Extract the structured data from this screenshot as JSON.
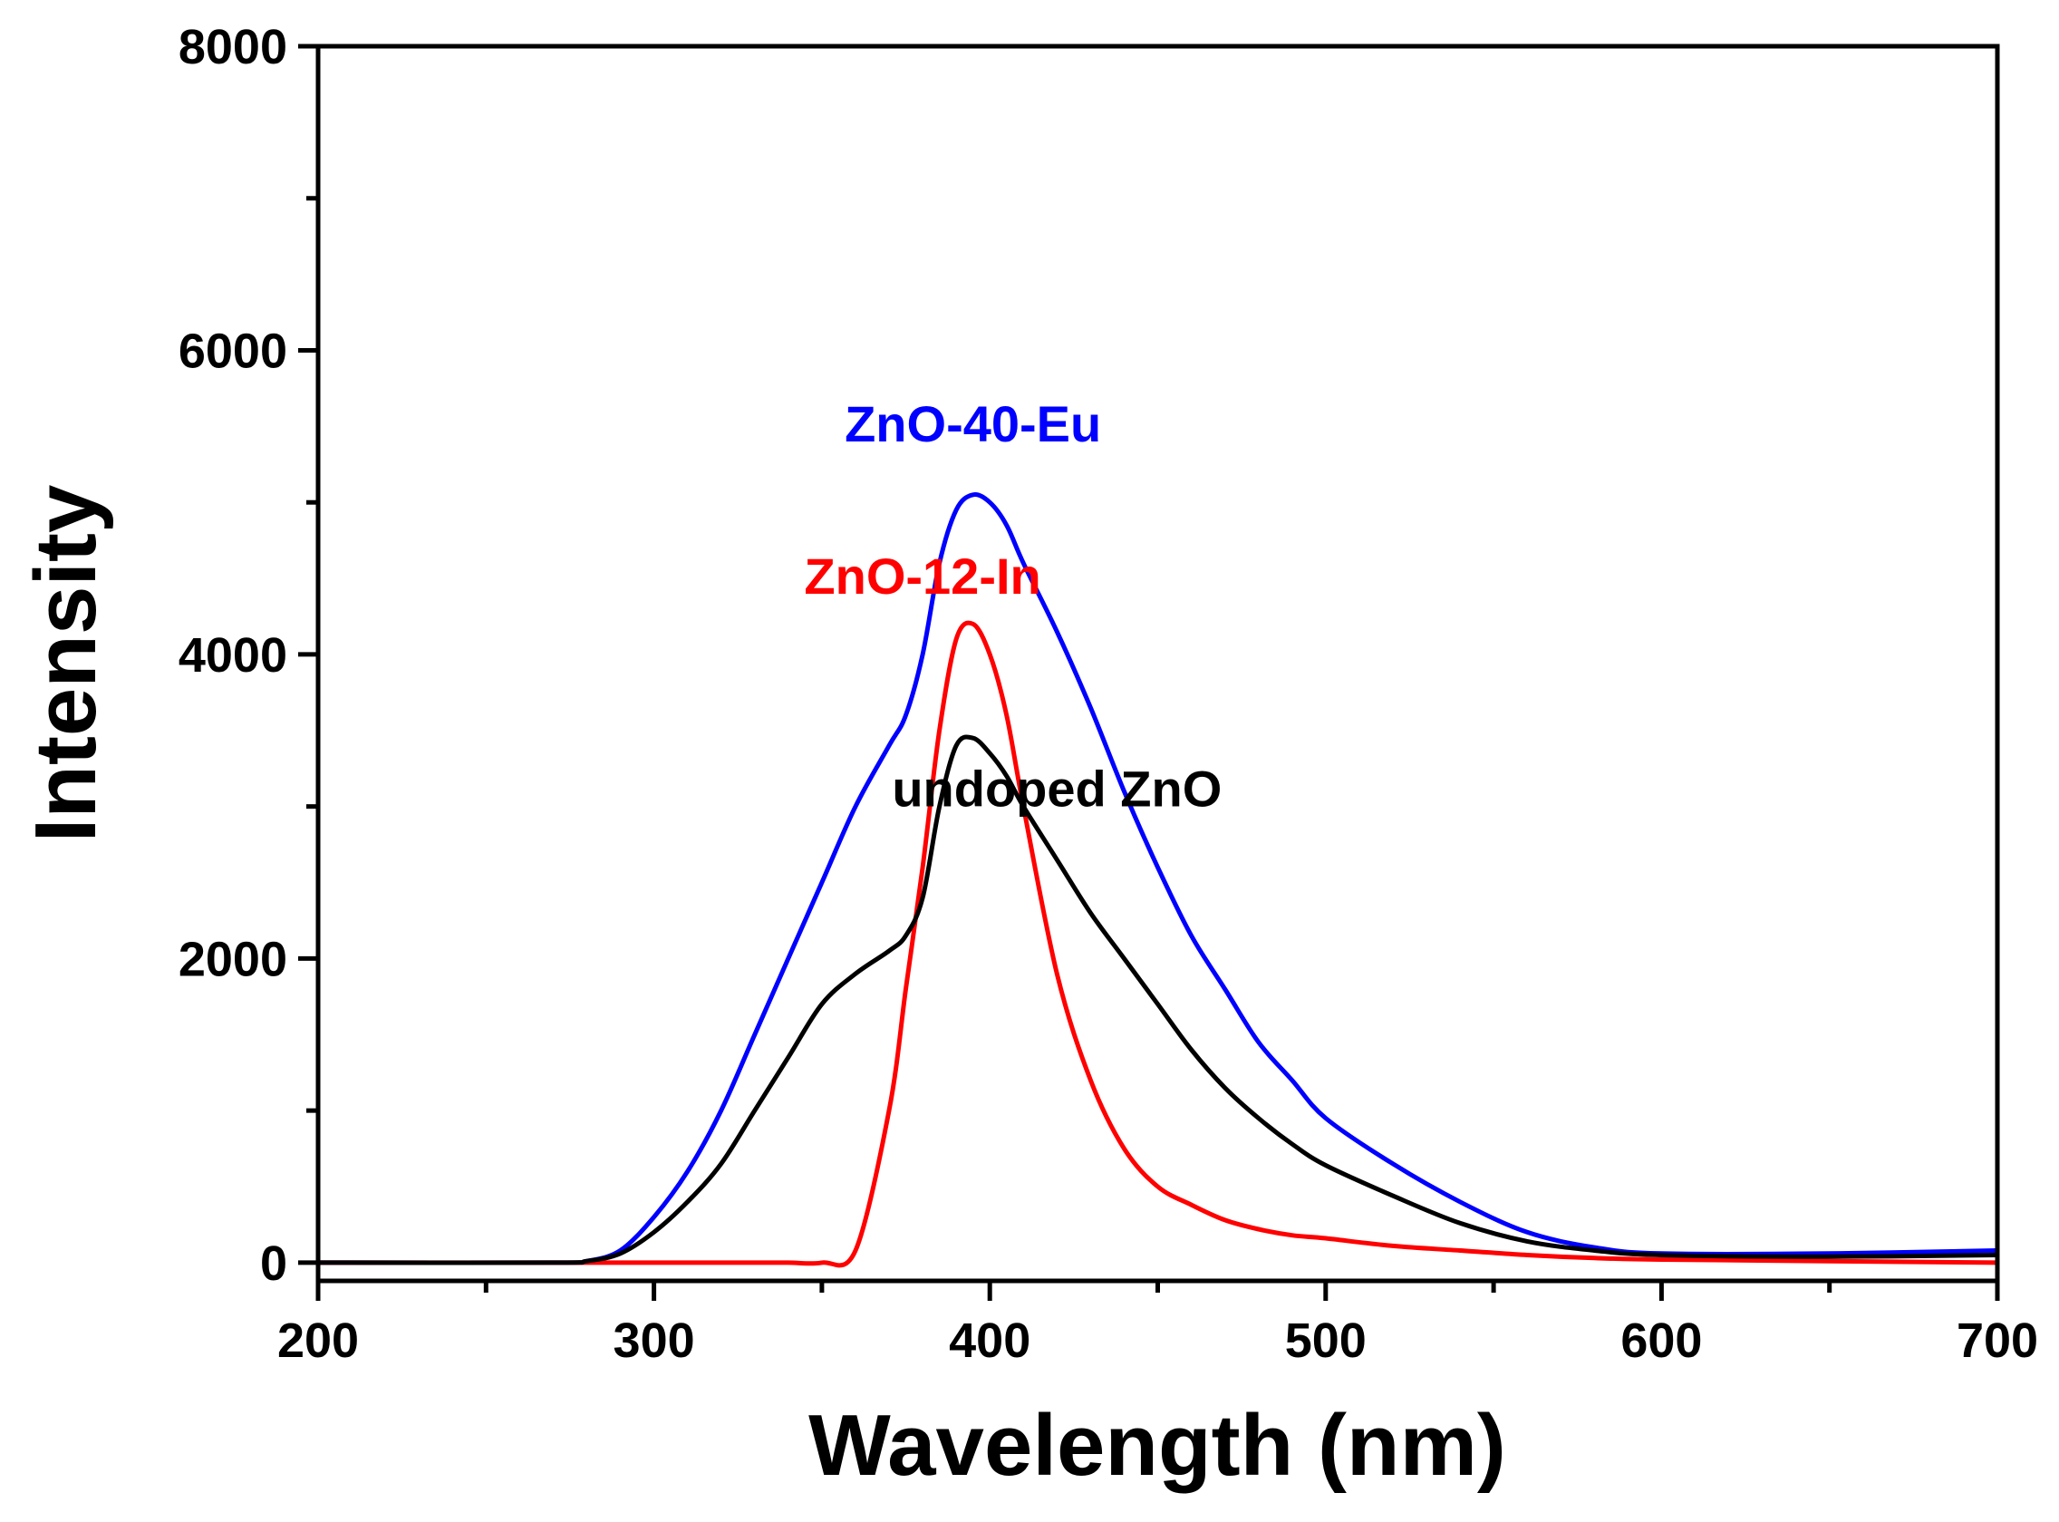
{
  "chart_data": {
    "type": "line",
    "title": "",
    "xlabel": "Wavelength (nm)",
    "ylabel": "Intensity",
    "xlim": [
      200,
      700
    ],
    "ylim": [
      -120,
      8000
    ],
    "x_ticks": [
      200,
      300,
      400,
      500,
      600,
      700
    ],
    "x_tick_labels": [
      "200",
      "300",
      "400",
      "500",
      "600",
      "700"
    ],
    "x_minor_ticks": [
      250,
      350,
      450,
      550,
      650
    ],
    "y_ticks": [
      0,
      2000,
      4000,
      6000,
      8000
    ],
    "y_tick_labels": [
      "0",
      "2000",
      "4000",
      "6000",
      "8000"
    ],
    "y_minor_ticks": [
      1000,
      3000,
      5000,
      7000
    ],
    "grid": false,
    "legend": "none",
    "x": [
      200,
      270,
      280,
      290,
      300,
      310,
      320,
      330,
      340,
      350,
      360,
      370,
      375,
      380,
      385,
      390,
      395,
      400,
      405,
      410,
      420,
      430,
      440,
      450,
      460,
      470,
      480,
      490,
      500,
      520,
      540,
      560,
      580,
      600,
      650,
      700
    ],
    "series": [
      {
        "name": "ZnO-40-Eu",
        "color": "#0000ff",
        "label_position": [
          395,
          5400
        ],
        "values": [
          0,
          0,
          10,
          80,
          300,
          600,
          1000,
          1500,
          2000,
          2500,
          3000,
          3400,
          3600,
          4000,
          4600,
          4950,
          5050,
          5000,
          4850,
          4600,
          4150,
          3650,
          3100,
          2600,
          2150,
          1800,
          1450,
          1200,
          950,
          650,
          400,
          200,
          100,
          60,
          60,
          80
        ]
      },
      {
        "name": "ZnO-12-In",
        "color": "#ff0000",
        "label_position": [
          380,
          4400
        ],
        "values": [
          0,
          0,
          0,
          0,
          0,
          0,
          0,
          0,
          0,
          0,
          80,
          1000,
          1800,
          2600,
          3500,
          4100,
          4200,
          4000,
          3600,
          3000,
          1900,
          1200,
          750,
          500,
          380,
          280,
          220,
          180,
          160,
          110,
          80,
          50,
          30,
          20,
          10,
          0
        ]
      },
      {
        "name": "undoped ZnO",
        "color": "#000000",
        "label_position": [
          420,
          3000
        ],
        "values": [
          0,
          0,
          10,
          60,
          200,
          400,
          650,
          1000,
          1350,
          1700,
          1900,
          2050,
          2150,
          2400,
          3000,
          3400,
          3450,
          3350,
          3200,
          3000,
          2650,
          2300,
          2000,
          1700,
          1400,
          1150,
          950,
          780,
          640,
          440,
          260,
          140,
          80,
          50,
          40,
          50
        ]
      }
    ]
  }
}
